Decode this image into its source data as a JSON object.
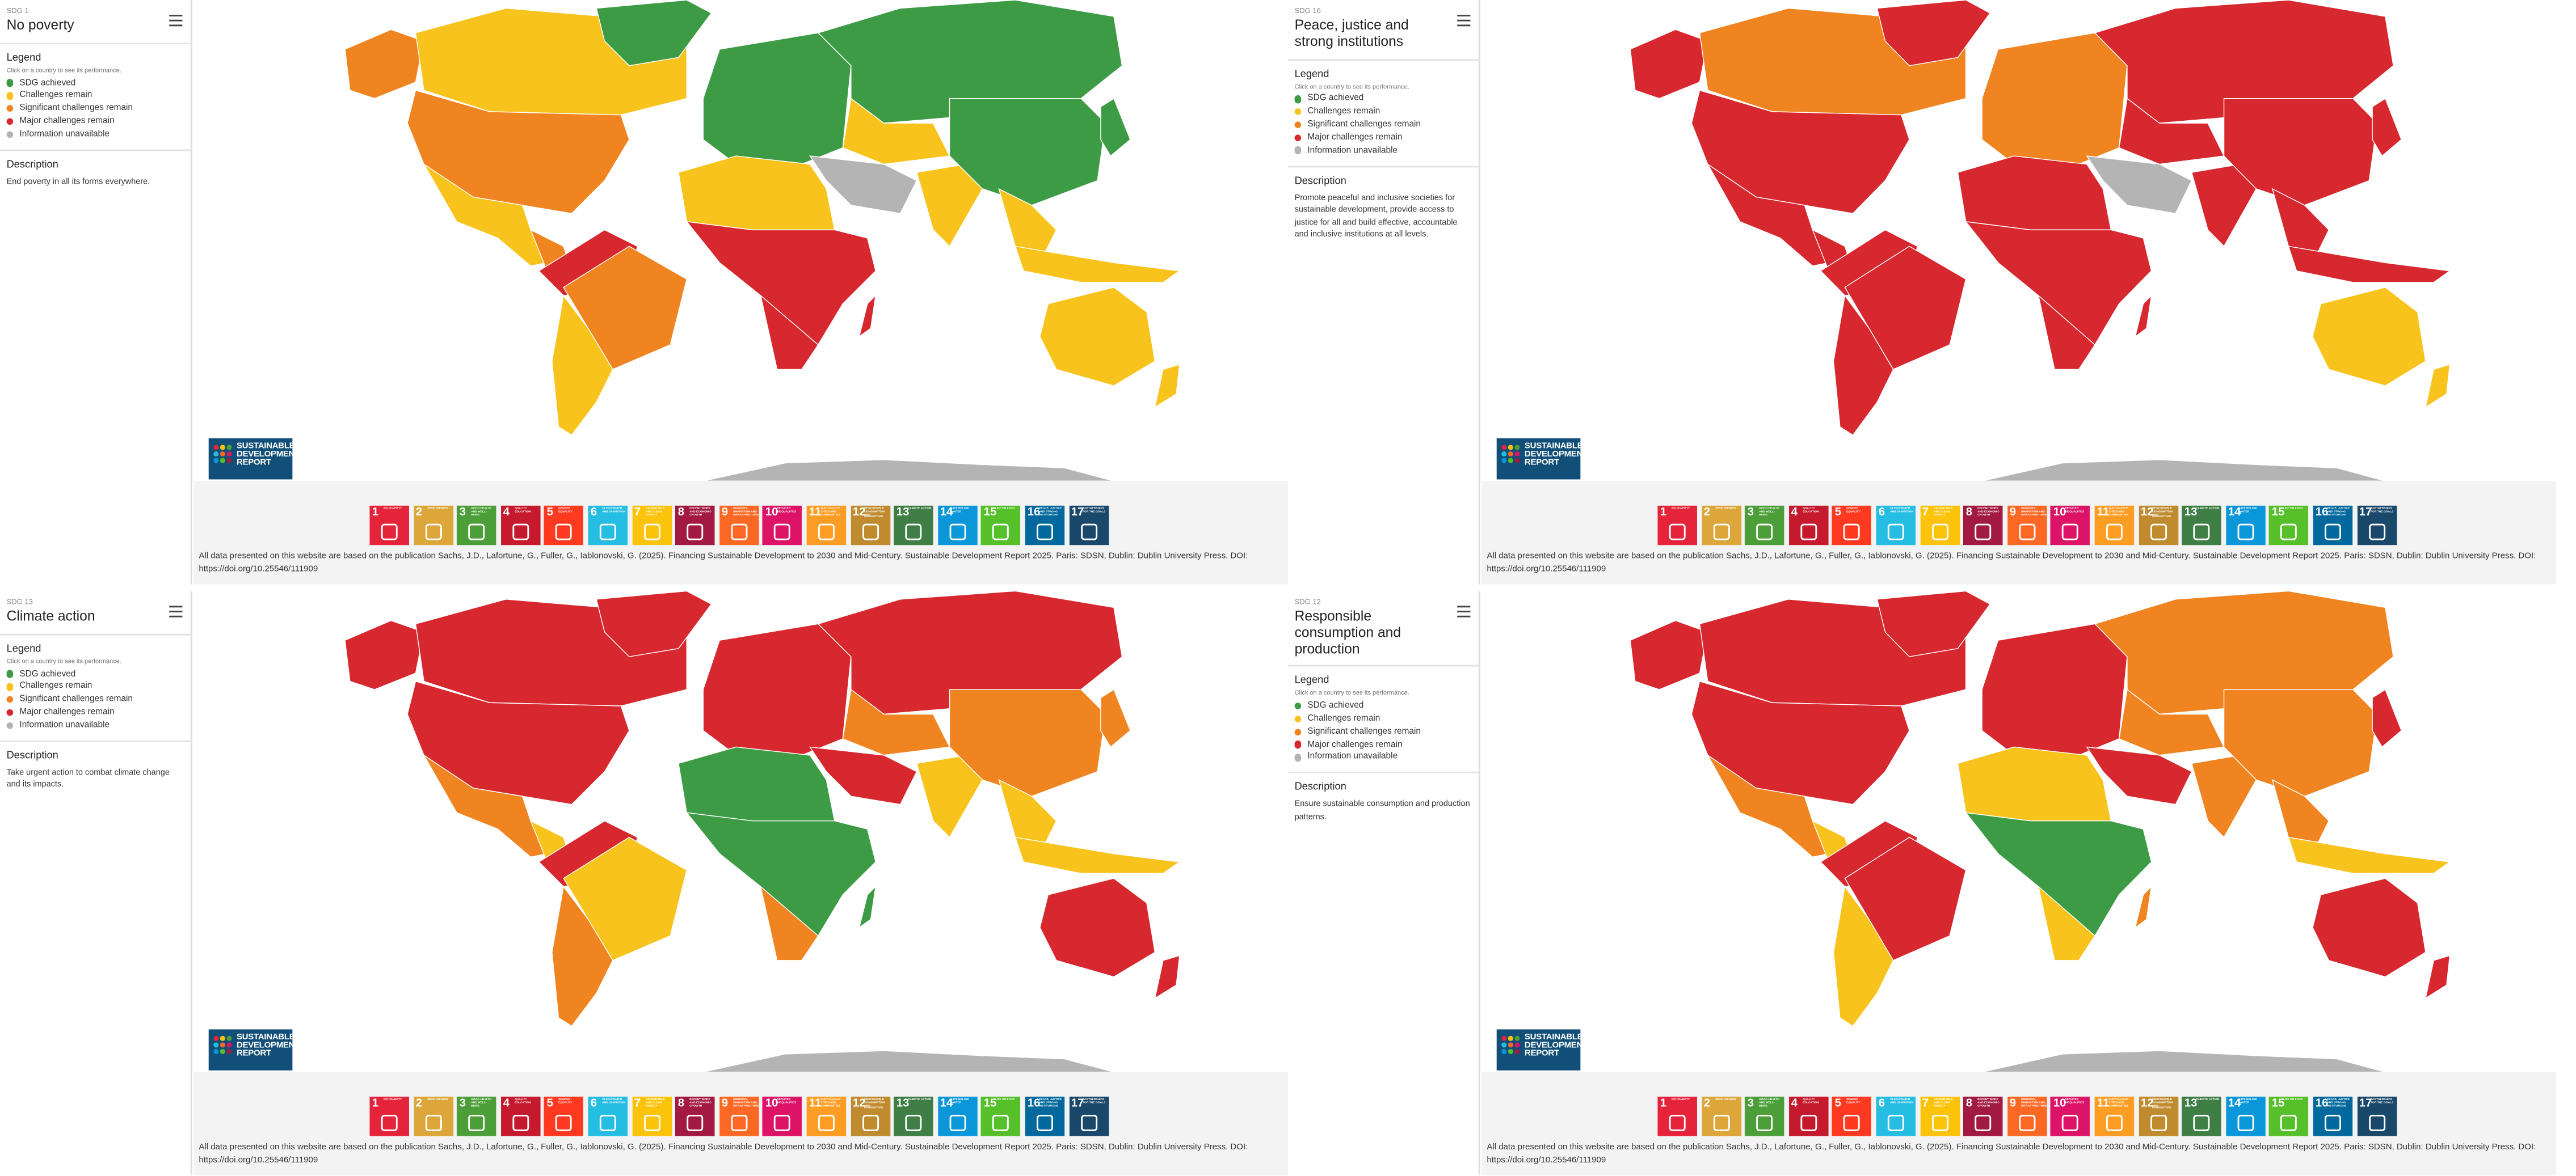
{
  "shared": {
    "legend": {
      "heading": "Legend",
      "hint": "Click on a country to see its performance.",
      "items": [
        {
          "label": "SDG achieved",
          "color": "#3d9b45"
        },
        {
          "label": "Challenges remain",
          "color": "#f7c31c"
        },
        {
          "label": "Significant challenges remain",
          "color": "#f08420"
        },
        {
          "label": "Major challenges remain",
          "color": "#d6282e"
        },
        {
          "label": "Information unavailable",
          "color": "#b4b4b4"
        }
      ]
    },
    "description_heading": "Description",
    "logo_lines": [
      "SUSTAINABLE",
      "DEVELOPMENT",
      "REPORT"
    ],
    "goals": [
      {
        "number": 1,
        "name": "NO POVERTY",
        "color": "#e5243b"
      },
      {
        "number": 2,
        "name": "ZERO HUNGER",
        "color": "#dda63a"
      },
      {
        "number": 3,
        "name": "GOOD HEALTH AND WELL-BEING",
        "color": "#4c9f38"
      },
      {
        "number": 4,
        "name": "QUALITY EDUCATION",
        "color": "#c5192d"
      },
      {
        "number": 5,
        "name": "GENDER EQUALITY",
        "color": "#ff3a21"
      },
      {
        "number": 6,
        "name": "CLEAN WATER AND SANITATION",
        "color": "#26bde2"
      },
      {
        "number": 7,
        "name": "AFFORDABLE AND CLEAN ENERGY",
        "color": "#fcc30b"
      },
      {
        "number": 8,
        "name": "DECENT WORK AND ECONOMIC GROWTH",
        "color": "#a21942"
      },
      {
        "number": 9,
        "name": "INDUSTRY, INNOVATION AND INFRASTRUCTURE",
        "color": "#fd6925"
      },
      {
        "number": 10,
        "name": "REDUCED INEQUALITIES",
        "color": "#dd1367"
      },
      {
        "number": 11,
        "name": "SUSTAINABLE CITIES AND COMMUNITIES",
        "color": "#fd9d24"
      },
      {
        "number": 12,
        "name": "RESPONSIBLE CONSUMPTION AND PRODUCTION",
        "color": "#bf8b2e"
      },
      {
        "number": 13,
        "name": "CLIMATE ACTION",
        "color": "#3f7e44"
      },
      {
        "number": 14,
        "name": "LIFE BELOW WATER",
        "color": "#0a97d9"
      },
      {
        "number": 15,
        "name": "LIFE ON LAND",
        "color": "#56c02b"
      },
      {
        "number": 16,
        "name": "PEACE, JUSTICE AND STRONG INSTITUTIONS",
        "color": "#00689d"
      },
      {
        "number": 17,
        "name": "PARTNERSHIPS FOR THE GOALS",
        "color": "#19486a"
      }
    ],
    "citation": "All data presented on this website are based on the publication Sachs, J.D., Lafortune, G., Fuller, G., Iablonovski, G. (2025). Financing Sustainable Development to 2030 and Mid-Century. Sustainable Development Report 2025. Paris: SDSN, Dublin: Dublin University Press. DOI: https://doi.org/10.25546/111909"
  },
  "panels": [
    {
      "sdg_label": "SDG 1",
      "title": "No poverty",
      "description": "End poverty in all its forms everywhere."
    },
    {
      "sdg_label": "SDG 16",
      "title": "Peace, justice and strong institutions",
      "description": "Promote peaceful and inclusive societies for sustainable development, provide access to justice for all and build effective, accountable and inclusive institutions at all levels."
    },
    {
      "sdg_label": "SDG 13",
      "title": "Climate action",
      "description": "Take urgent action to combat climate change and its impacts."
    },
    {
      "sdg_label": "SDG 12",
      "title": "Responsible consumption and production",
      "description": "Ensure sustainable consumption and production patterns."
    }
  ]
}
